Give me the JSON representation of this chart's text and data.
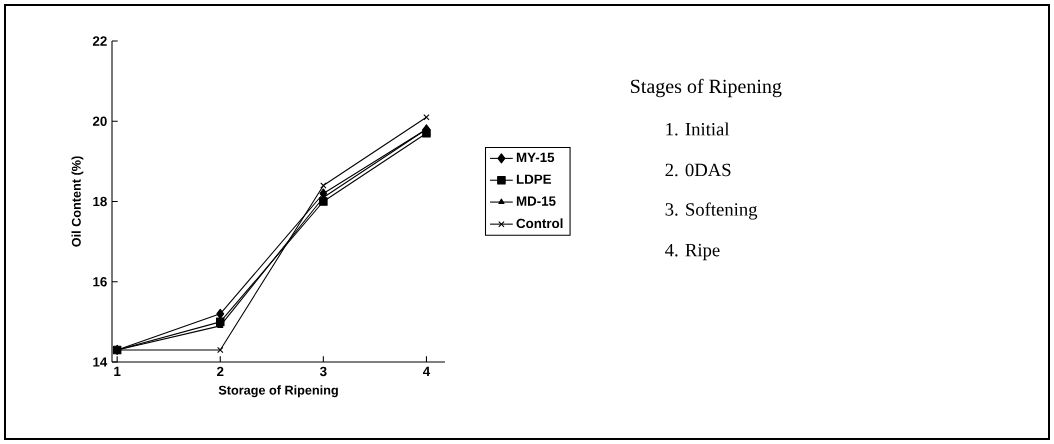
{
  "chart_data": {
    "type": "line",
    "xlabel": "Storage of Ripening",
    "ylabel": "Oil Content (%)",
    "x": [
      1,
      2,
      3,
      4
    ],
    "xlim": [
      0.95,
      4.18
    ],
    "xticks": [
      1,
      2,
      3,
      4
    ],
    "ylim": [
      14,
      22
    ],
    "yticks": [
      14,
      16,
      18,
      20,
      22
    ],
    "series": [
      {
        "name": "MY-15",
        "color": "#000000",
        "marker": "diamond",
        "values": [
          14.3,
          15.2,
          18.2,
          19.8
        ]
      },
      {
        "name": "LDPE",
        "color": "#000000",
        "marker": "square",
        "values": [
          14.3,
          15.0,
          18.0,
          19.7
        ]
      },
      {
        "name": "MD-15",
        "color": "#000000",
        "marker": "triangle",
        "values": [
          14.3,
          14.9,
          18.1,
          19.8
        ]
      },
      {
        "name": "Control",
        "color": "#000000",
        "marker": "cross",
        "values": [
          14.3,
          14.3,
          18.4,
          20.1
        ]
      }
    ],
    "legend": "right",
    "grid": false,
    "annotations": [
      "Stages of Ripening",
      "1. Initial",
      "2. 0DAS",
      "3. Softening",
      "4. Ripe"
    ]
  }
}
